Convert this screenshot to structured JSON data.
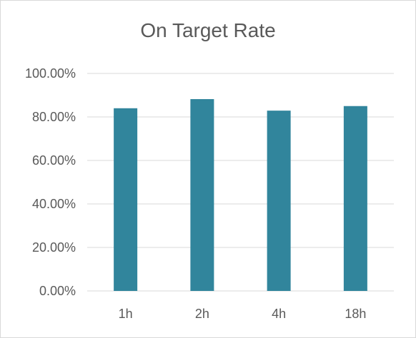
{
  "chart_data": {
    "type": "bar",
    "title": "On Target Rate",
    "categories": [
      "1h",
      "2h",
      "4h",
      "18h"
    ],
    "series": [
      {
        "values": [
          84.0,
          88.2,
          82.9,
          85.0
        ]
      }
    ],
    "ylim": [
      0,
      100
    ],
    "yticks": [
      "0.00%",
      "20.00%",
      "40.00%",
      "60.00%",
      "80.00%",
      "100.00%"
    ],
    "ytick_values": [
      0,
      20,
      40,
      60,
      80,
      100
    ],
    "xlabel": "",
    "ylabel": "",
    "grid": true,
    "legend": "none",
    "colors": {
      "bar": "#31859c",
      "grid": "#d9d9d9",
      "text": "#595959"
    }
  }
}
